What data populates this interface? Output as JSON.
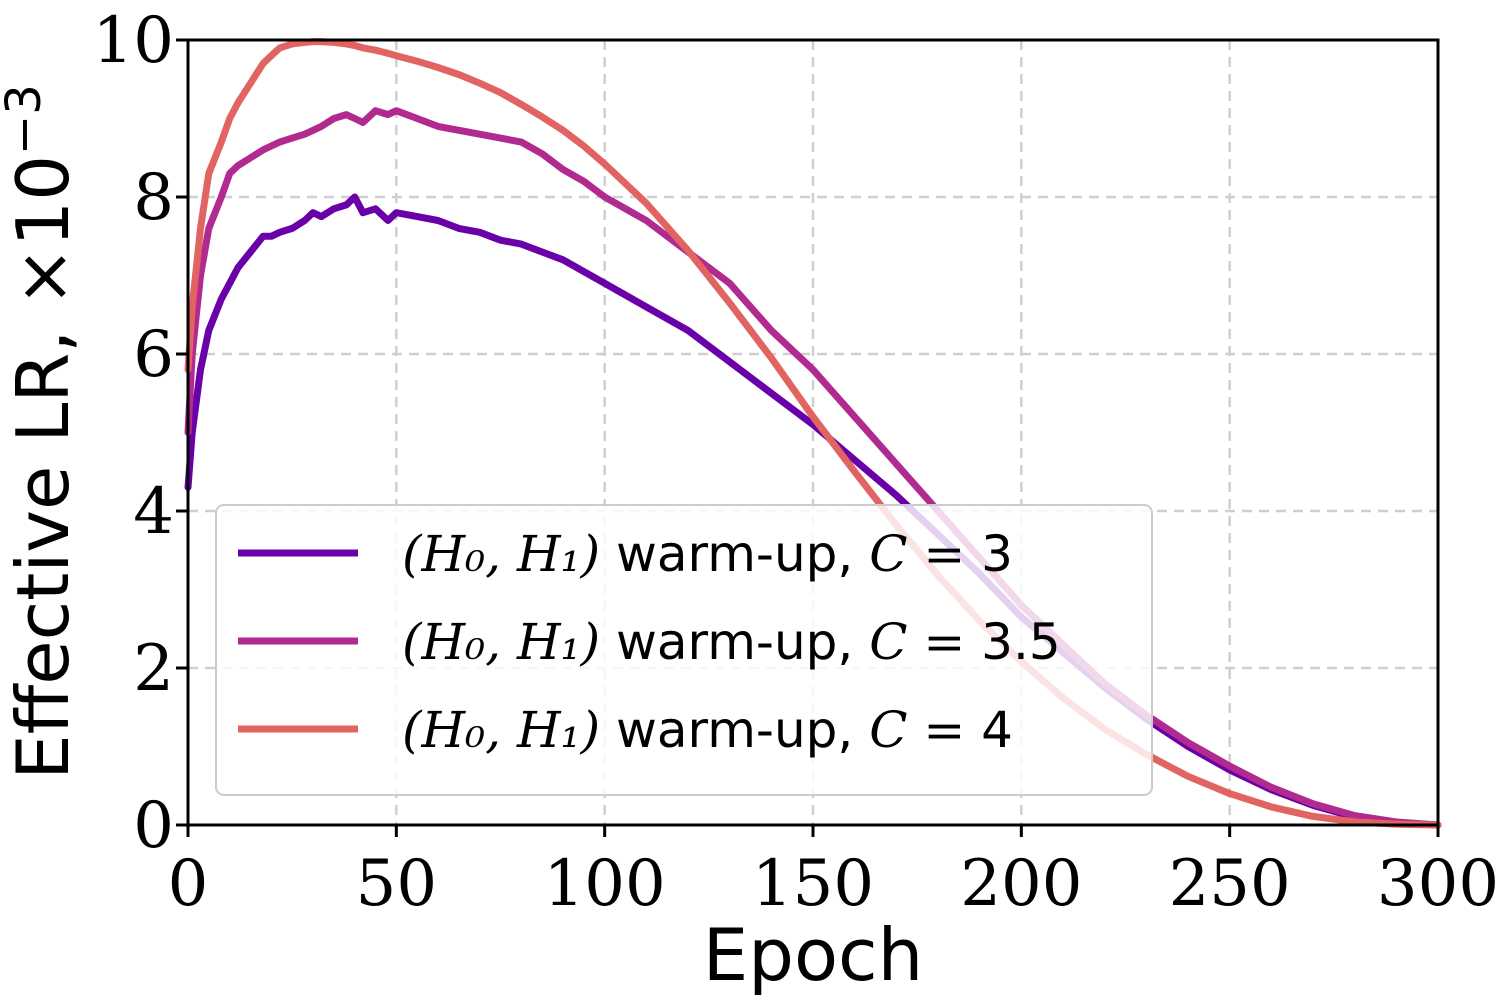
{
  "chart_data": {
    "type": "line",
    "title": "",
    "xlabel": "Epoch",
    "ylabel": "Effective LR, ×10⁻³",
    "ylabel_main": "Effective LR, ×10",
    "ylabel_exp": "−3",
    "xlim": [
      0,
      300
    ],
    "ylim": [
      0,
      10
    ],
    "xticks": [
      0,
      50,
      100,
      150,
      200,
      250,
      300
    ],
    "xtick_labels": [
      "0",
      "50",
      "100",
      "150",
      "200",
      "250",
      "300"
    ],
    "yticks": [
      0,
      2,
      4,
      6,
      8,
      10
    ],
    "ytick_labels": [
      "0",
      "2",
      "4",
      "6",
      "8",
      "10"
    ],
    "grid": true,
    "legend_position": "lower-left",
    "series": [
      {
        "name": "(H₀, H₁) warm-up, C = 3",
        "label_text": " warm-up, ",
        "c_value": "3",
        "color": "#6a00a8",
        "x": [
          0,
          1,
          3,
          5,
          8,
          10,
          12,
          15,
          18,
          20,
          22,
          25,
          28,
          30,
          32,
          35,
          38,
          40,
          42,
          45,
          48,
          50,
          55,
          60,
          65,
          70,
          75,
          80,
          85,
          90,
          95,
          100,
          110,
          120,
          130,
          140,
          150,
          160,
          170,
          180,
          190,
          200,
          210,
          220,
          230,
          240,
          250,
          260,
          270,
          280,
          290,
          300
        ],
        "y": [
          4.3,
          5.0,
          5.8,
          6.3,
          6.7,
          6.9,
          7.1,
          7.3,
          7.5,
          7.5,
          7.55,
          7.6,
          7.7,
          7.8,
          7.75,
          7.85,
          7.9,
          8.0,
          7.8,
          7.85,
          7.7,
          7.8,
          7.75,
          7.7,
          7.6,
          7.55,
          7.45,
          7.4,
          7.3,
          7.2,
          7.05,
          6.9,
          6.6,
          6.3,
          5.9,
          5.5,
          5.1,
          4.65,
          4.2,
          3.7,
          3.2,
          2.65,
          2.2,
          1.75,
          1.35,
          1.0,
          0.7,
          0.45,
          0.25,
          0.1,
          0.03,
          0.0
        ]
      },
      {
        "name": "(H₀, H₁) warm-up, C = 3.5",
        "label_text": " warm-up, ",
        "c_value": "3.5",
        "color": "#b12a90",
        "x": [
          0,
          1,
          3,
          5,
          8,
          10,
          12,
          15,
          18,
          20,
          22,
          25,
          28,
          30,
          32,
          35,
          38,
          40,
          42,
          45,
          48,
          50,
          55,
          60,
          65,
          70,
          75,
          80,
          85,
          90,
          95,
          100,
          110,
          120,
          130,
          140,
          150,
          160,
          170,
          180,
          190,
          200,
          210,
          220,
          230,
          240,
          250,
          260,
          270,
          280,
          290,
          300
        ],
        "y": [
          5.0,
          6.0,
          7.0,
          7.6,
          8.0,
          8.3,
          8.4,
          8.5,
          8.6,
          8.65,
          8.7,
          8.75,
          8.8,
          8.85,
          8.9,
          9.0,
          9.05,
          9.0,
          8.95,
          9.1,
          9.05,
          9.1,
          9.0,
          8.9,
          8.85,
          8.8,
          8.75,
          8.7,
          8.55,
          8.35,
          8.2,
          8.0,
          7.7,
          7.3,
          6.9,
          6.3,
          5.8,
          5.2,
          4.6,
          4.0,
          3.4,
          2.8,
          2.3,
          1.8,
          1.4,
          1.05,
          0.75,
          0.48,
          0.27,
          0.12,
          0.04,
          0.0
        ]
      },
      {
        "name": "(H₀, H₁) warm-up, C = 4",
        "label_text": " warm-up, ",
        "c_value": "4",
        "color": "#e16462",
        "x": [
          0,
          1,
          3,
          5,
          8,
          10,
          12,
          15,
          18,
          20,
          22,
          25,
          28,
          30,
          32,
          35,
          38,
          40,
          42,
          45,
          48,
          50,
          55,
          60,
          65,
          70,
          75,
          80,
          85,
          90,
          95,
          100,
          110,
          120,
          130,
          140,
          150,
          160,
          170,
          180,
          190,
          200,
          210,
          220,
          230,
          240,
          250,
          260,
          270,
          280,
          290,
          300
        ],
        "y": [
          5.8,
          6.6,
          7.6,
          8.3,
          8.7,
          9.0,
          9.2,
          9.45,
          9.7,
          9.8,
          9.9,
          9.95,
          9.97,
          9.98,
          9.98,
          9.97,
          9.95,
          9.93,
          9.9,
          9.87,
          9.83,
          9.8,
          9.73,
          9.65,
          9.56,
          9.45,
          9.33,
          9.18,
          9.02,
          8.85,
          8.65,
          8.42,
          7.92,
          7.32,
          6.65,
          5.95,
          5.2,
          4.5,
          3.82,
          3.18,
          2.6,
          2.08,
          1.62,
          1.22,
          0.9,
          0.62,
          0.4,
          0.23,
          0.11,
          0.04,
          0.01,
          0.0
        ]
      }
    ]
  }
}
